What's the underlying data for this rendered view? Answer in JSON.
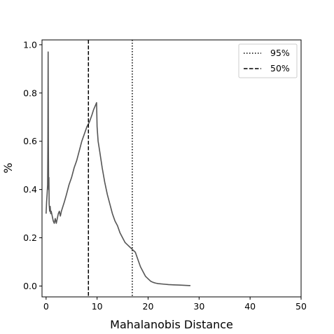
{
  "chart_data": {
    "type": "line",
    "title": "",
    "xlabel": "Mahalanobis Distance",
    "ylabel": "%",
    "xlim": [
      -0.8,
      50
    ],
    "ylim": [
      -0.045,
      1.02
    ],
    "xticks": [
      0,
      10,
      20,
      30,
      40,
      50
    ],
    "yticks": [
      0.0,
      0.2,
      0.4,
      0.6,
      0.8,
      1.0
    ],
    "xtick_labels": [
      "0",
      "10",
      "20",
      "30",
      "40",
      "50"
    ],
    "ytick_labels": [
      "0.0",
      "0.2",
      "0.4",
      "0.6",
      "0.8",
      "1.0"
    ],
    "grid": false,
    "legend_position": "top-right",
    "series": [
      {
        "color": "#555555",
        "x": [
          0.0,
          0.1,
          0.2,
          0.3,
          0.35,
          0.4,
          0.45,
          0.5,
          0.55,
          0.6,
          0.7,
          0.8,
          0.9,
          1.0,
          1.2,
          1.4,
          1.6,
          1.8,
          2.0,
          2.2,
          2.4,
          2.6,
          2.8,
          3.0,
          3.3,
          3.6,
          4.0,
          4.5,
          5.0,
          5.5,
          6.0,
          6.5,
          7.0,
          7.5,
          8.0,
          8.5,
          9.0,
          9.3,
          9.5,
          9.7,
          9.9,
          10.0,
          10.2,
          10.5,
          11.0,
          11.5,
          12.0,
          12.5,
          13.0,
          13.5,
          14.0,
          14.5,
          15.0,
          15.5,
          16.0,
          16.5,
          17.0,
          17.5,
          18.0,
          18.5,
          19.0,
          19.5,
          20.0,
          20.5,
          21.0,
          21.5,
          22.0,
          23.0,
          24.0,
          25.0,
          26.0,
          27.0,
          28.0,
          28.3
        ],
        "y": [
          0.3,
          0.35,
          0.38,
          0.42,
          0.6,
          0.97,
          0.6,
          0.4,
          0.45,
          0.34,
          0.31,
          0.33,
          0.3,
          0.31,
          0.29,
          0.27,
          0.26,
          0.28,
          0.26,
          0.28,
          0.3,
          0.31,
          0.29,
          0.31,
          0.33,
          0.35,
          0.38,
          0.42,
          0.45,
          0.49,
          0.52,
          0.56,
          0.6,
          0.63,
          0.66,
          0.68,
          0.71,
          0.73,
          0.74,
          0.75,
          0.76,
          0.66,
          0.6,
          0.56,
          0.49,
          0.43,
          0.38,
          0.34,
          0.3,
          0.27,
          0.25,
          0.22,
          0.2,
          0.18,
          0.17,
          0.16,
          0.15,
          0.14,
          0.11,
          0.08,
          0.06,
          0.04,
          0.03,
          0.02,
          0.015,
          0.012,
          0.01,
          0.008,
          0.006,
          0.005,
          0.004,
          0.003,
          0.002,
          0.002
        ]
      }
    ],
    "vlines": [
      {
        "x": 16.9,
        "style": "dotted",
        "label": "95%"
      },
      {
        "x": 8.3,
        "style": "dashed",
        "label": "50%"
      }
    ]
  }
}
